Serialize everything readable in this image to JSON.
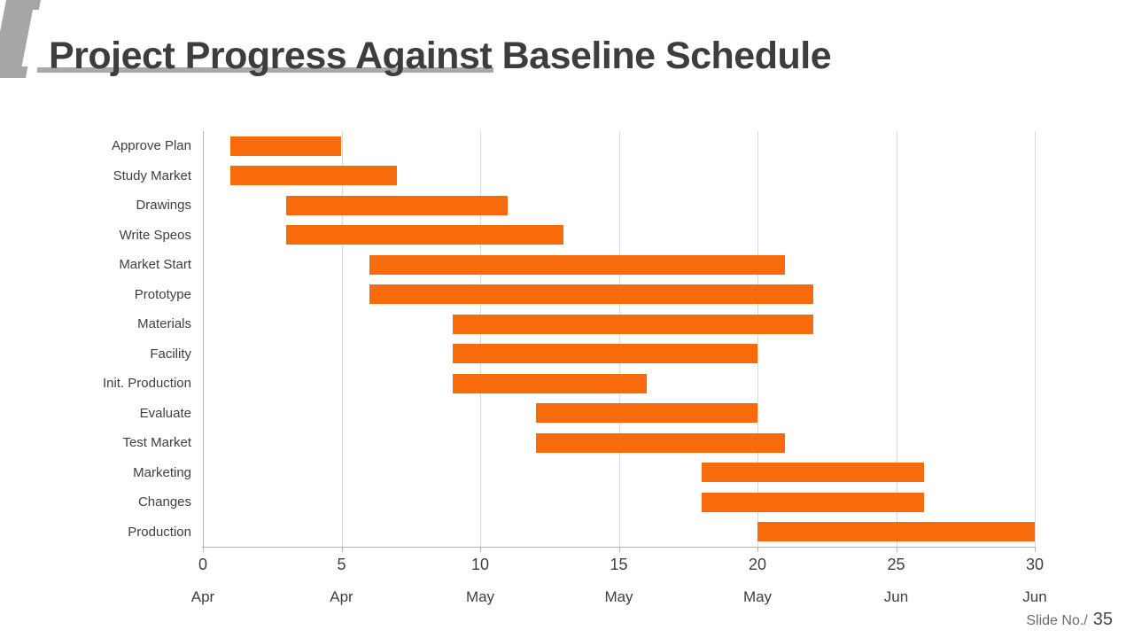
{
  "slide": {
    "title": "Project Progress Against Baseline Schedule",
    "footer_label": "Slide No./",
    "footer_number": "35"
  },
  "colors": {
    "bar": "#F76B0C",
    "title_text": "#3D3D3D",
    "accent_shape": "#A6A6A6",
    "underline": "#A9A9A9",
    "axis_line": "#B5B5B5",
    "gridline": "#D9D9D9",
    "tick_text": "#3F3F3F",
    "task_text": "#3F3F3F",
    "footer_text": "#6B6B6B"
  },
  "chart_data": {
    "type": "bar",
    "subtype": "gantt-horizontal",
    "title": "",
    "xlabel": "",
    "ylabel": "",
    "grid": true,
    "legend": false,
    "x_axis": {
      "min": 0,
      "max": 30,
      "ticks": [
        0,
        5,
        10,
        15,
        20,
        25,
        30
      ],
      "tick_months": [
        "Apr",
        "Apr",
        "May",
        "May",
        "May",
        "Jun",
        "Jun"
      ]
    },
    "bars": [
      {
        "task": "Approve Plan",
        "start": 1,
        "end": 5
      },
      {
        "task": "Study Market",
        "start": 1,
        "end": 7
      },
      {
        "task": "Drawings",
        "start": 3,
        "end": 11
      },
      {
        "task": "Write Speos",
        "start": 3,
        "end": 13
      },
      {
        "task": "Market Start",
        "start": 6,
        "end": 21
      },
      {
        "task": "Prototype",
        "start": 6,
        "end": 22
      },
      {
        "task": "Materials",
        "start": 9,
        "end": 22
      },
      {
        "task": "Facility",
        "start": 9,
        "end": 20
      },
      {
        "task": "Init. Production",
        "start": 9,
        "end": 16
      },
      {
        "task": "Evaluate",
        "start": 12,
        "end": 20
      },
      {
        "task": "Test Market",
        "start": 12,
        "end": 21
      },
      {
        "task": "Marketing",
        "start": 18,
        "end": 26
      },
      {
        "task": "Changes",
        "start": 18,
        "end": 26
      },
      {
        "task": "Production",
        "start": 20,
        "end": 30
      }
    ]
  }
}
